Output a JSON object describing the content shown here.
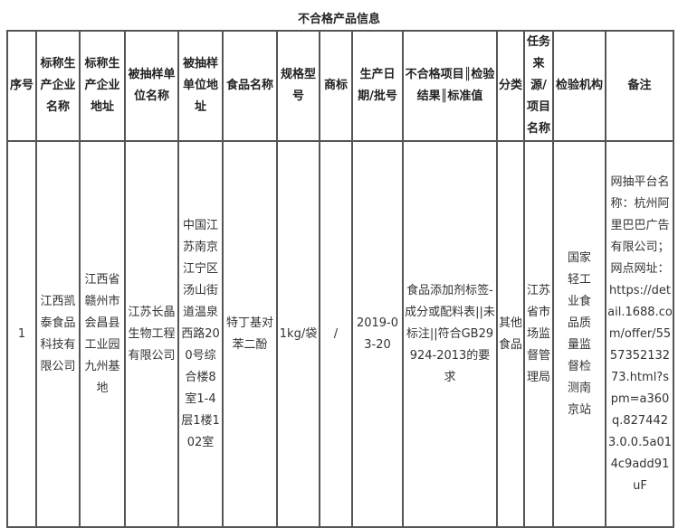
{
  "title": "不合格产品信息",
  "headers": [
    "序号",
    "标称生产企业名称",
    "标称生产企业地址",
    "被抽样单位名称",
    "被抽样单位地址",
    "食品名称",
    "规格型号",
    "商标",
    "生产日期/批号",
    "不合格项目║检验结果║标准值",
    "分类",
    "任务来源/项目名称",
    "检验机构",
    "备注"
  ],
  "rows": [
    [
      "1",
      "江西凯泰食品科技有限公司",
      "江西省赣州市会昌县工业园九州基地",
      "江苏长晶生物工程有限公司",
      "中国江苏南京江宁区汤山街道温泉西路200号综合楼8室1-4层1楼102室",
      "特丁基对苯二酚",
      "1kg/袋",
      "/",
      "2019-03-20",
      "食品添加剂标签-成分或配料表||未标注||符合GB29924-2013的要求",
      "其他食品",
      "江苏省市场监督管理局",
      "国家轻工业食品质量监督检测南京站",
      "网抽平台名称：杭州阿里巴巴广告有限公司；网点网址：https://detail.1688.com/offer/555735213273.html?spm=a360q.8274423.0.0.5a014c9add91uF"
    ]
  ]
}
